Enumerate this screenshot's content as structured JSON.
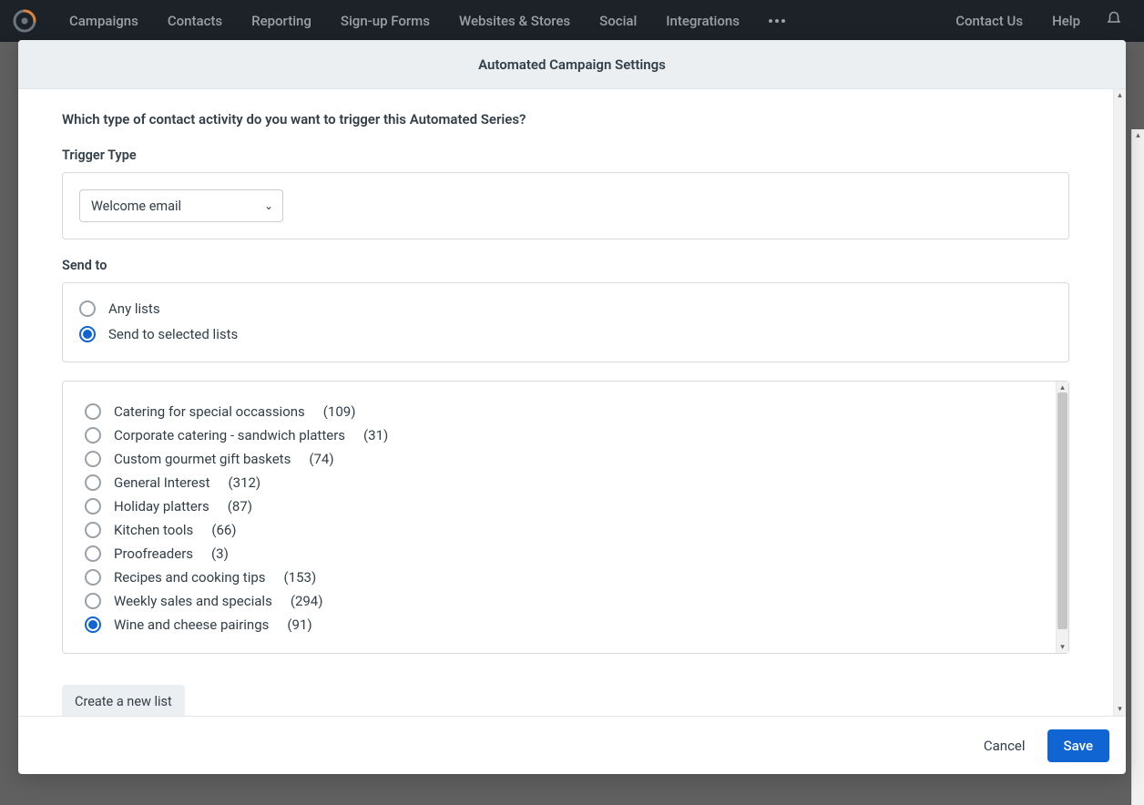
{
  "nav": {
    "items": [
      "Campaigns",
      "Contacts",
      "Reporting",
      "Sign-up Forms",
      "Websites & Stores",
      "Social",
      "Integrations"
    ],
    "right": [
      "Contact Us",
      "Help"
    ]
  },
  "modal": {
    "title": "Automated Campaign Settings",
    "question": "Which type of contact activity do you want to trigger this Automated Series?",
    "trigger_label": "Trigger Type",
    "trigger_value": "Welcome email",
    "sendto_label": "Send to",
    "sendto_options": [
      {
        "label": "Any lists",
        "selected": false
      },
      {
        "label": "Send to selected lists",
        "selected": true
      }
    ],
    "lists": [
      {
        "label": "Catering for special occassions",
        "count": "(109)",
        "selected": false
      },
      {
        "label": "Corporate catering - sandwich platters",
        "count": "(31)",
        "selected": false
      },
      {
        "label": "Custom gourmet gift baskets",
        "count": "(74)",
        "selected": false
      },
      {
        "label": "General Interest",
        "count": "(312)",
        "selected": false
      },
      {
        "label": "Holiday platters",
        "count": "(87)",
        "selected": false
      },
      {
        "label": "Kitchen tools",
        "count": "(66)",
        "selected": false
      },
      {
        "label": "Proofreaders",
        "count": "(3)",
        "selected": false
      },
      {
        "label": "Recipes and cooking tips",
        "count": "(153)",
        "selected": false
      },
      {
        "label": "Weekly sales and specials",
        "count": "(294)",
        "selected": false
      },
      {
        "label": "Wine and cheese pairings",
        "count": "(91)",
        "selected": true
      }
    ],
    "create_list": "Create a new list",
    "cancel": "Cancel",
    "save": "Save"
  },
  "colors": {
    "nav_bg": "#1d2229",
    "accent": "#1065d2",
    "header_bg": "#eceff1",
    "border": "#d6dade"
  }
}
